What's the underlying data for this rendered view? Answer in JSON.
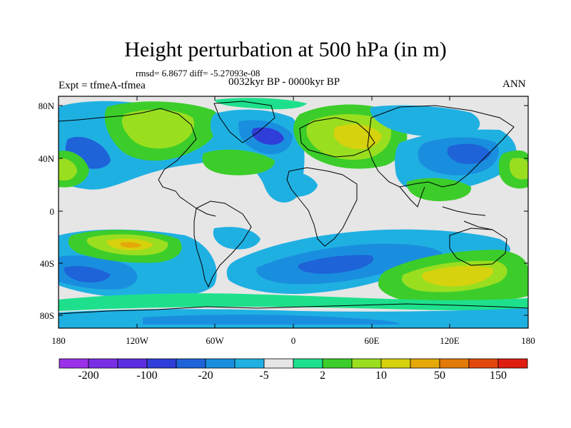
{
  "header": {
    "title": "Height perturbation at 500 hPa (in m)",
    "stats": "rmsd= 6.8677 diff= -5.27093e-08",
    "expt": "Expt = tfmeA-tfmea",
    "period": "0032kyr BP - 0000kyr BP",
    "season": "ANN"
  },
  "axes": {
    "lat_labels": [
      "80N",
      "40N",
      "0",
      "40S",
      "80S"
    ],
    "lon_labels": [
      "180",
      "120W",
      "60W",
      "0",
      "60E",
      "120E",
      "180"
    ]
  },
  "colorbar": {
    "labels": [
      "-200",
      "-100",
      "-20",
      "-5",
      "2",
      "10",
      "50",
      "150"
    ],
    "colors": [
      "#9a30e8",
      "#7a2ee6",
      "#5a2ee0",
      "#2f3ed8",
      "#1e63d8",
      "#1a8ede",
      "#1fb0e2",
      "#e6e6e6",
      "#1ee08c",
      "#3ccd2a",
      "#9ade20",
      "#d6d20e",
      "#e6a808",
      "#e27a08",
      "#e2480e",
      "#de1e10"
    ]
  },
  "map_colors": {
    "background": "#e6e6e6",
    "light_blue": "#1fb0e2",
    "mid_blue": "#1a8ede",
    "blue": "#1e63d8",
    "dark_blue": "#2f3ed8",
    "teal_green": "#1ee08c",
    "green": "#3ccd2a",
    "yellow_green": "#9ade20",
    "yellow": "#d6d20e",
    "orange": "#e6a808"
  }
}
